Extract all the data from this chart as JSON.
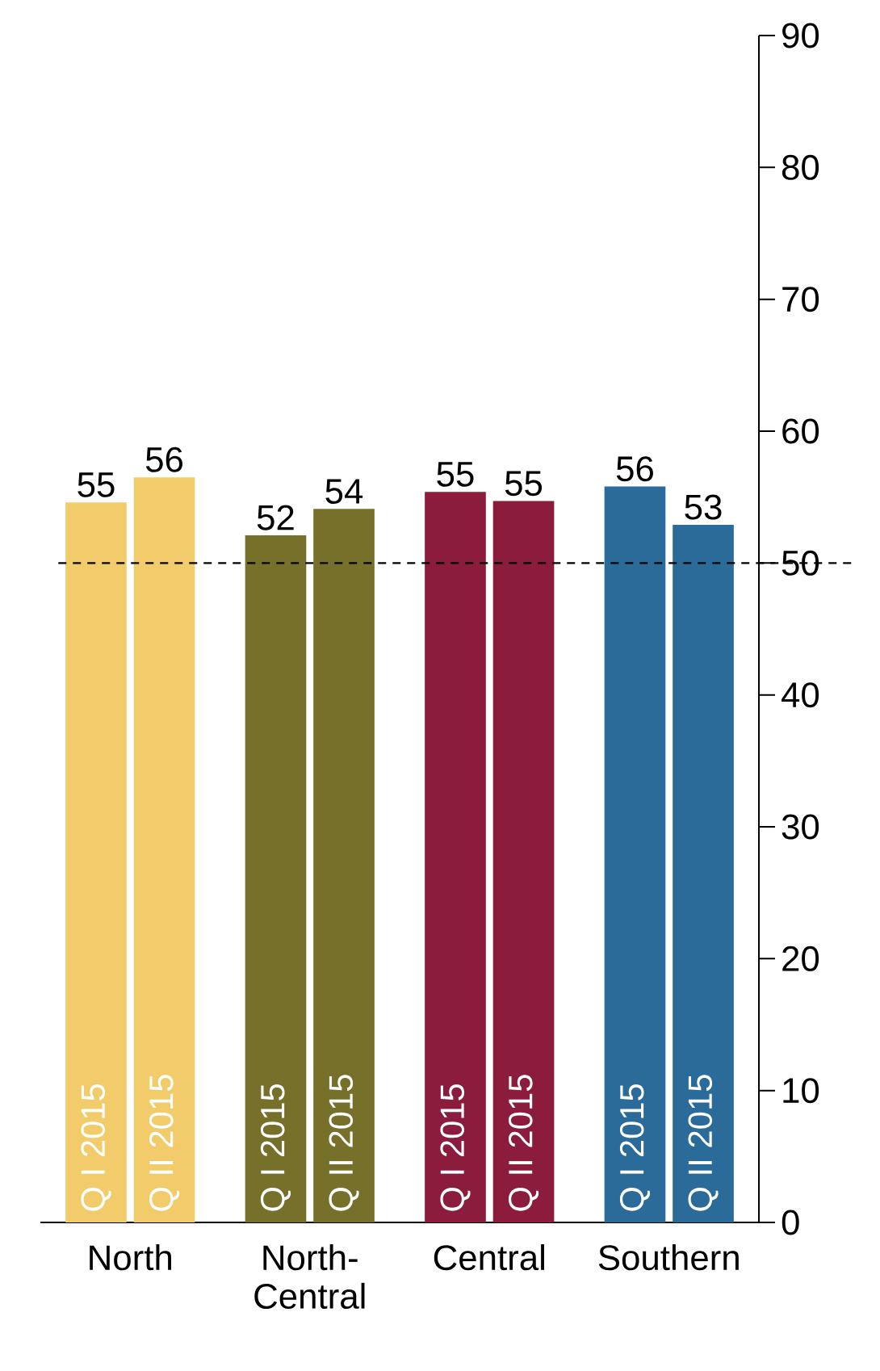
{
  "chart_data": {
    "type": "bar",
    "categories": [
      "North",
      "North-Central",
      "Central",
      "Southern"
    ],
    "series": [
      {
        "name": "Q I 2015",
        "colors": [
          "#f2cc6b",
          "#76702a",
          "#8c1c3c",
          "#2a6b99"
        ],
        "values": [
          54.6,
          52.1,
          55.4,
          55.8
        ],
        "value_labels": [
          "55",
          "52",
          "55",
          "56"
        ]
      },
      {
        "name": "Q II 2015",
        "colors": [
          "#f2cc6b",
          "#76702a",
          "#8c1c3c",
          "#2a6b99"
        ],
        "values": [
          56.5,
          54.1,
          54.7,
          52.9
        ],
        "value_labels": [
          "56",
          "54",
          "55",
          "53"
        ]
      }
    ],
    "ylim": [
      0,
      90
    ],
    "yticks": [
      0,
      10,
      20,
      30,
      40,
      50,
      60,
      70,
      80,
      90
    ],
    "ref_lines": [
      {
        "axis": "y",
        "value": 50,
        "line_style": "dashed",
        "color": "#000000"
      }
    ],
    "grid": false
  }
}
